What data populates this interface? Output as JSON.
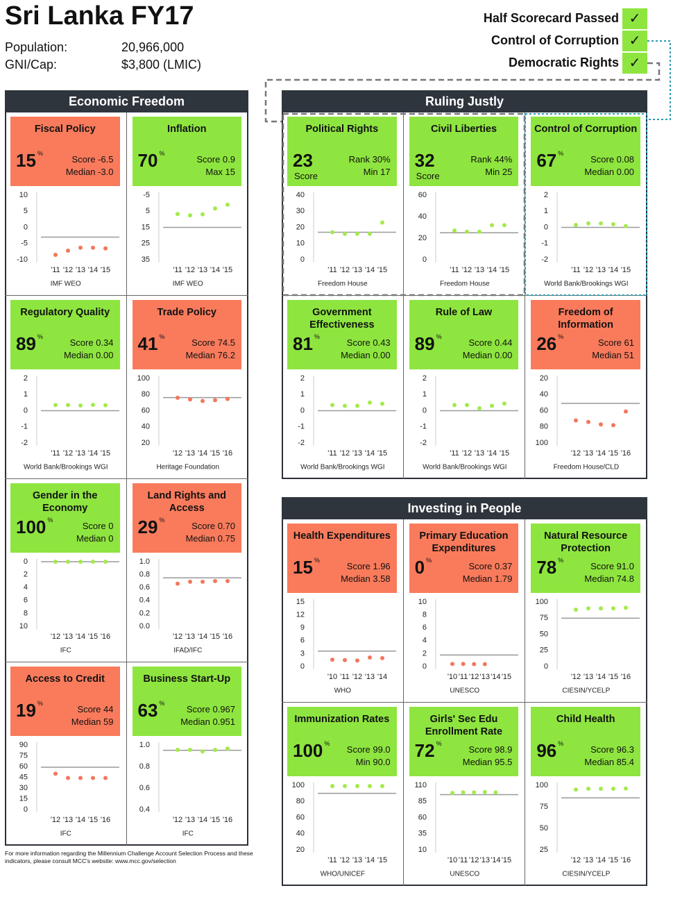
{
  "header": {
    "title": "Sri Lanka FY17",
    "population_label": "Population:",
    "population": "20,966,000",
    "gni_label": "GNI/Cap:",
    "gni": "$3,800 (LMIC)"
  },
  "scorecard": [
    {
      "label": "Half Scorecard Passed",
      "mark": "✓"
    },
    {
      "label": "Control of Corruption",
      "mark": "✓"
    },
    {
      "label": "Democratic Rights",
      "mark": "✓"
    }
  ],
  "percent_sign": "%",
  "colors": {
    "pass": "#8ee53f",
    "fail": "#f97b5c",
    "pass_dot": "#a4ea4c",
    "fail_dot": "#f3775c"
  },
  "sections": [
    {
      "title": "Economic Freedom",
      "indicators": [
        {
          "name": "Fiscal Policy",
          "passed": false,
          "pct": 15,
          "stats": [
            "Score -6.5",
            "Median -3.0"
          ],
          "chart": {
            "yticks": [
              10,
              5,
              0,
              -5,
              -10
            ],
            "ylim": [
              -10,
              10
            ],
            "x": [
              "'11",
              "'12",
              "'13",
              "'14",
              "'15"
            ],
            "values": [
              -8.5,
              -7.2,
              -6.3,
              -6.3,
              -6.5
            ],
            "threshold": -3,
            "source": "IMF WEO"
          }
        },
        {
          "name": "Inflation",
          "passed": true,
          "pct": 70,
          "stats": [
            "Score 0.9",
            "Max 15"
          ],
          "chart": {
            "yticks": [
              -5,
              5,
              15,
              25,
              35
            ],
            "ylim": [
              35,
              -5
            ],
            "x": [
              "'11",
              "'12",
              "'13",
              "'14",
              "'15"
            ],
            "values": [
              6.7,
              7.5,
              6.9,
              3.3,
              0.9
            ],
            "threshold": 15,
            "source": "IMF WEO"
          }
        },
        {
          "name": "Regulatory Quality",
          "passed": true,
          "pct": 89,
          "stats": [
            "Score 0.34",
            "Median 0.00"
          ],
          "chart": {
            "yticks": [
              2,
              1,
              0,
              -1,
              -2
            ],
            "ylim": [
              -2,
              2
            ],
            "x": [
              "'11",
              "'12",
              "'13",
              "'14",
              "'15"
            ],
            "values": [
              0.35,
              0.35,
              0.32,
              0.36,
              0.34
            ],
            "threshold": 0,
            "source": "World Bank/Brookings WGI"
          }
        },
        {
          "name": "Trade Policy",
          "passed": false,
          "pct": 41,
          "stats": [
            "Score 74.5",
            "Median 76.2"
          ],
          "chart": {
            "yticks": [
              100,
              80,
              60,
              40,
              20
            ],
            "ylim": [
              20,
              100
            ],
            "x": [
              "'12",
              "'13",
              "'14",
              "'15",
              "'16"
            ],
            "values": [
              76,
              74,
              72,
              73,
              74.5
            ],
            "threshold": 76.2,
            "source": "Heritage Foundation"
          }
        },
        {
          "name": "Gender in the Economy",
          "passed": true,
          "pct": 100,
          "stats": [
            "Score 0",
            "Median 0"
          ],
          "chart": {
            "yticks": [
              0,
              2,
              4,
              6,
              8,
              10
            ],
            "ylim": [
              10,
              0
            ],
            "x": [
              "'12",
              "'13",
              "'14",
              "'15",
              "'16"
            ],
            "values": [
              0,
              0,
              0,
              0,
              0
            ],
            "threshold": 0,
            "source": "IFC"
          }
        },
        {
          "name": "Land Rights and Access",
          "passed": false,
          "pct": 29,
          "stats": [
            "Score 0.70",
            "Median 0.75"
          ],
          "chart": {
            "yticks": [
              {
                "value": 1,
                "label": "1.0"
              },
              0.8,
              0.6,
              0.4,
              0.2,
              {
                "value": 0,
                "label": "0.0"
              }
            ],
            "ylim": [
              0,
              1
            ],
            "x": [
              "'12",
              "'13",
              "'14",
              "'15",
              "'16"
            ],
            "values": [
              0.66,
              0.69,
              0.69,
              0.7,
              0.7
            ],
            "threshold": 0.75,
            "source": "IFAD/IFC"
          }
        },
        {
          "name": "Access to Credit",
          "passed": false,
          "pct": 19,
          "stats": [
            "Score 44",
            "Median 59"
          ],
          "chart": {
            "yticks": [
              90,
              75,
              60,
              45,
              30,
              15,
              0
            ],
            "ylim": [
              0,
              90
            ],
            "x": [
              "'12",
              "'13",
              "'14",
              "'15",
              "'16"
            ],
            "values": [
              50,
              44,
              44,
              44,
              44
            ],
            "threshold": 59,
            "source": "IFC"
          }
        },
        {
          "name": "Business Start-Up",
          "passed": true,
          "pct": 63,
          "stats": [
            "Score 0.967",
            "Median 0.951"
          ],
          "chart": {
            "yticks": [
              {
                "value": 1,
                "label": "1.0"
              },
              0.8,
              0.6,
              0.4
            ],
            "ylim": [
              0.4,
              1
            ],
            "x": [
              "'12",
              "'13",
              "'14",
              "'15",
              "'16"
            ],
            "values": [
              0.955,
              0.955,
              0.94,
              0.955,
              0.967
            ],
            "threshold": 0.951,
            "source": "IFC"
          }
        }
      ]
    },
    {
      "title": "Ruling Justly",
      "indicators": [
        {
          "name": "Political Rights",
          "passed": true,
          "pct": 23,
          "caption": "Score",
          "stats": [
            "Rank 30%",
            "Min 17"
          ],
          "chart": {
            "yticks": [
              40,
              30,
              20,
              10,
              0
            ],
            "ylim": [
              0,
              40
            ],
            "x": [
              "'11",
              "'12",
              "'13",
              "'14",
              "'15"
            ],
            "values": [
              17,
              16,
              16,
              16,
              23
            ],
            "threshold": 17,
            "source": "Freedom House"
          }
        },
        {
          "name": "Civil Liberties",
          "passed": true,
          "pct": 32,
          "caption": "Score",
          "stats": [
            "Rank 44%",
            "Min 25"
          ],
          "chart": {
            "yticks": [
              60,
              40,
              20,
              0
            ],
            "ylim": [
              0,
              60
            ],
            "x": [
              "'11",
              "'12",
              "'13",
              "'14",
              "'15"
            ],
            "values": [
              27,
              26,
              26,
              32,
              32
            ],
            "threshold": 25,
            "source": "Freedom House"
          }
        },
        {
          "name": "Control of Corruption",
          "passed": true,
          "pct": 67,
          "stats": [
            "Score 0.08",
            "Median 0.00"
          ],
          "chart": {
            "yticks": [
              2,
              1,
              0,
              -1,
              -2
            ],
            "ylim": [
              -2,
              2
            ],
            "x": [
              "'11",
              "'12",
              "'13",
              "'14",
              "'15"
            ],
            "values": [
              0.15,
              0.25,
              0.25,
              0.2,
              0.08
            ],
            "threshold": 0,
            "source": "World Bank/Brookings WGI"
          }
        },
        {
          "name": "Government Effectiveness",
          "passed": true,
          "pct": 81,
          "stats": [
            "Score 0.43",
            "Median 0.00"
          ],
          "chart": {
            "yticks": [
              2,
              1,
              0,
              -1,
              -2
            ],
            "ylim": [
              -2,
              2
            ],
            "x": [
              "'11",
              "'12",
              "'13",
              "'14",
              "'15"
            ],
            "values": [
              0.35,
              0.3,
              0.3,
              0.5,
              0.43
            ],
            "threshold": 0,
            "source": "World Bank/Brookings WGI"
          }
        },
        {
          "name": "Rule of Law",
          "passed": true,
          "pct": 89,
          "stats": [
            "Score 0.44",
            "Median 0.00"
          ],
          "chart": {
            "yticks": [
              2,
              1,
              0,
              -1,
              -2
            ],
            "ylim": [
              -2,
              2
            ],
            "x": [
              "'11",
              "'12",
              "'13",
              "'14",
              "'15"
            ],
            "values": [
              0.35,
              0.35,
              0.15,
              0.3,
              0.44
            ],
            "threshold": 0,
            "source": "World Bank/Brookings WGI"
          }
        },
        {
          "name": "Freedom of Information",
          "passed": false,
          "pct": 26,
          "stats": [
            "Score 61",
            "Median 51"
          ],
          "chart": {
            "yticks": [
              20,
              40,
              60,
              80,
              100
            ],
            "ylim": [
              100,
              20
            ],
            "x": [
              "'12",
              "'13",
              "'14",
              "'15",
              "'16"
            ],
            "values": [
              72,
              74,
              77,
              78,
              61
            ],
            "threshold": 51,
            "source": "Freedom House/CLD"
          }
        }
      ]
    },
    {
      "title": "Investing in People",
      "indicators": [
        {
          "name": "Health Expenditures",
          "passed": false,
          "pct": 15,
          "stats": [
            "Score 1.96",
            "Median 3.58"
          ],
          "chart": {
            "yticks": [
              15,
              12,
              9,
              6,
              3,
              0
            ],
            "ylim": [
              0,
              15
            ],
            "x": [
              "'10",
              "'11",
              "'12",
              "'13",
              "'14"
            ],
            "values": [
              1.6,
              1.5,
              1.4,
              2.1,
              1.96
            ],
            "threshold": 3.58,
            "source": "WHO"
          }
        },
        {
          "name": "Primary Education Expenditures",
          "passed": false,
          "pct": 0,
          "stats": [
            "Score 0.37",
            "Median 1.79"
          ],
          "chart": {
            "yticks": [
              10,
              8,
              6,
              4,
              2,
              0
            ],
            "ylim": [
              0,
              10
            ],
            "x": [
              "'10",
              "'11",
              "'12",
              "'13",
              "'14",
              "'15"
            ],
            "values": [
              0.4,
              0.4,
              0.37,
              0.37,
              null,
              null
            ],
            "threshold": 1.79,
            "source": "UNESCO"
          }
        },
        {
          "name": "Natural Resource Protection",
          "passed": true,
          "pct": 78,
          "stats": [
            "Score 91.0",
            "Median 74.8"
          ],
          "chart": {
            "yticks": [
              100,
              75,
              50,
              25,
              0
            ],
            "ylim": [
              0,
              100
            ],
            "x": [
              "'12",
              "'13",
              "'14",
              "'15",
              "'16"
            ],
            "values": [
              88,
              90,
              90,
              90,
              91
            ],
            "threshold": 74.8,
            "source": "CIESIN/YCELP"
          }
        },
        {
          "name": "Immunization Rates",
          "passed": true,
          "pct": 100,
          "stats": [
            "Score 99.0",
            "Min 90.0"
          ],
          "chart": {
            "yticks": [
              100,
              80,
              60,
              40,
              20
            ],
            "ylim": [
              20,
              100
            ],
            "x": [
              "'11",
              "'12",
              "'13",
              "'14",
              "'15"
            ],
            "values": [
              99,
              99,
              99,
              99,
              99
            ],
            "threshold": 90,
            "source": "WHO/UNICEF"
          }
        },
        {
          "name": "Girls' Sec Edu Enrollment Rate",
          "passed": true,
          "pct": 72,
          "stats": [
            "Score 98.9",
            "Median 95.5"
          ],
          "chart": {
            "yticks": [
              110,
              85,
              60,
              35,
              10
            ],
            "ylim": [
              10,
              110
            ],
            "x": [
              "'10",
              "'11",
              "'12",
              "'13",
              "'14",
              "'15"
            ],
            "values": [
              98,
              99,
              99,
              99.5,
              98.9,
              null
            ],
            "threshold": 95.5,
            "source": "UNESCO"
          }
        },
        {
          "name": "Child Health",
          "passed": true,
          "pct": 96,
          "stats": [
            "Score 96.3",
            "Median 85.4"
          ],
          "chart": {
            "yticks": [
              100,
              75,
              50,
              25
            ],
            "ylim": [
              25,
              100
            ],
            "x": [
              "'12",
              "'13",
              "'14",
              "'15",
              "'16"
            ],
            "values": [
              95,
              96,
              96,
              96,
              96.3
            ],
            "threshold": 85.4,
            "source": "CIESIN/YCELP"
          }
        }
      ]
    }
  ],
  "footnote": "For more information regarding the Millennium Challenge Account Selection Process and these indicators, please consult MCC's website: www.mcc.gov/selection"
}
